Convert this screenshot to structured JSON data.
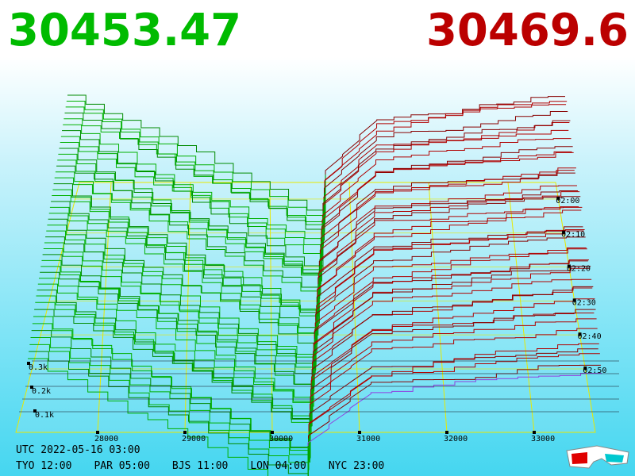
{
  "prices": {
    "bid": "30453.47",
    "ask": "30469.6"
  },
  "price_axis": [
    "28000",
    "29000",
    "30000",
    "31000",
    "32000",
    "33000"
  ],
  "time_axis": [
    "02:00",
    "02:10",
    "02:20",
    "02:30",
    "02:40",
    "02:50"
  ],
  "depth_axis": [
    "0.3k",
    "0.2k",
    "0.1k"
  ],
  "footer": {
    "utc": "UTC 2022-05-16 03:00",
    "clocks": [
      "TYO 12:00",
      "PAR 05:00",
      "BJS 11:00",
      "LON 04:00",
      "NYC 23:00"
    ]
  }
}
